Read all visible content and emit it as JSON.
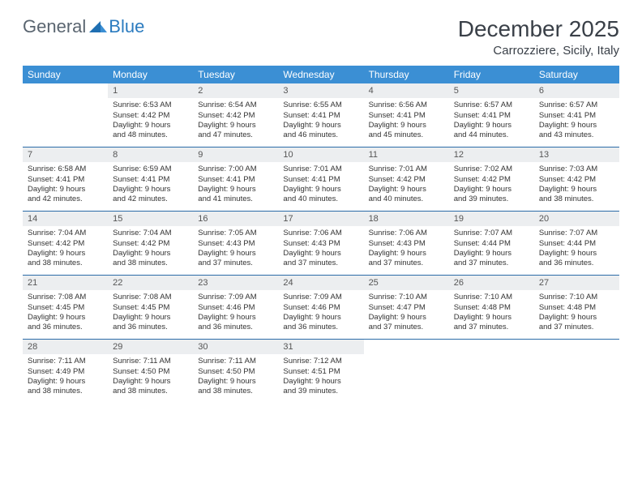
{
  "logo": {
    "general": "General",
    "blue": "Blue"
  },
  "title": "December 2025",
  "location": "Carrozziere, Sicily, Italy",
  "colors": {
    "header_bg": "#3b8fd4",
    "header_text": "#ffffff",
    "daynum_bg": "#eceef0",
    "row_border": "#2b6ca8",
    "logo_blue": "#2b7bbf",
    "title_color": "#3a4048"
  },
  "weekdays": [
    "Sunday",
    "Monday",
    "Tuesday",
    "Wednesday",
    "Thursday",
    "Friday",
    "Saturday"
  ],
  "weeks": [
    [
      null,
      {
        "n": "1",
        "sr": "Sunrise: 6:53 AM",
        "ss": "Sunset: 4:42 PM",
        "d1": "Daylight: 9 hours",
        "d2": "and 48 minutes."
      },
      {
        "n": "2",
        "sr": "Sunrise: 6:54 AM",
        "ss": "Sunset: 4:42 PM",
        "d1": "Daylight: 9 hours",
        "d2": "and 47 minutes."
      },
      {
        "n": "3",
        "sr": "Sunrise: 6:55 AM",
        "ss": "Sunset: 4:41 PM",
        "d1": "Daylight: 9 hours",
        "d2": "and 46 minutes."
      },
      {
        "n": "4",
        "sr": "Sunrise: 6:56 AM",
        "ss": "Sunset: 4:41 PM",
        "d1": "Daylight: 9 hours",
        "d2": "and 45 minutes."
      },
      {
        "n": "5",
        "sr": "Sunrise: 6:57 AM",
        "ss": "Sunset: 4:41 PM",
        "d1": "Daylight: 9 hours",
        "d2": "and 44 minutes."
      },
      {
        "n": "6",
        "sr": "Sunrise: 6:57 AM",
        "ss": "Sunset: 4:41 PM",
        "d1": "Daylight: 9 hours",
        "d2": "and 43 minutes."
      }
    ],
    [
      {
        "n": "7",
        "sr": "Sunrise: 6:58 AM",
        "ss": "Sunset: 4:41 PM",
        "d1": "Daylight: 9 hours",
        "d2": "and 42 minutes."
      },
      {
        "n": "8",
        "sr": "Sunrise: 6:59 AM",
        "ss": "Sunset: 4:41 PM",
        "d1": "Daylight: 9 hours",
        "d2": "and 42 minutes."
      },
      {
        "n": "9",
        "sr": "Sunrise: 7:00 AM",
        "ss": "Sunset: 4:41 PM",
        "d1": "Daylight: 9 hours",
        "d2": "and 41 minutes."
      },
      {
        "n": "10",
        "sr": "Sunrise: 7:01 AM",
        "ss": "Sunset: 4:41 PM",
        "d1": "Daylight: 9 hours",
        "d2": "and 40 minutes."
      },
      {
        "n": "11",
        "sr": "Sunrise: 7:01 AM",
        "ss": "Sunset: 4:42 PM",
        "d1": "Daylight: 9 hours",
        "d2": "and 40 minutes."
      },
      {
        "n": "12",
        "sr": "Sunrise: 7:02 AM",
        "ss": "Sunset: 4:42 PM",
        "d1": "Daylight: 9 hours",
        "d2": "and 39 minutes."
      },
      {
        "n": "13",
        "sr": "Sunrise: 7:03 AM",
        "ss": "Sunset: 4:42 PM",
        "d1": "Daylight: 9 hours",
        "d2": "and 38 minutes."
      }
    ],
    [
      {
        "n": "14",
        "sr": "Sunrise: 7:04 AM",
        "ss": "Sunset: 4:42 PM",
        "d1": "Daylight: 9 hours",
        "d2": "and 38 minutes."
      },
      {
        "n": "15",
        "sr": "Sunrise: 7:04 AM",
        "ss": "Sunset: 4:42 PM",
        "d1": "Daylight: 9 hours",
        "d2": "and 38 minutes."
      },
      {
        "n": "16",
        "sr": "Sunrise: 7:05 AM",
        "ss": "Sunset: 4:43 PM",
        "d1": "Daylight: 9 hours",
        "d2": "and 37 minutes."
      },
      {
        "n": "17",
        "sr": "Sunrise: 7:06 AM",
        "ss": "Sunset: 4:43 PM",
        "d1": "Daylight: 9 hours",
        "d2": "and 37 minutes."
      },
      {
        "n": "18",
        "sr": "Sunrise: 7:06 AM",
        "ss": "Sunset: 4:43 PM",
        "d1": "Daylight: 9 hours",
        "d2": "and 37 minutes."
      },
      {
        "n": "19",
        "sr": "Sunrise: 7:07 AM",
        "ss": "Sunset: 4:44 PM",
        "d1": "Daylight: 9 hours",
        "d2": "and 37 minutes."
      },
      {
        "n": "20",
        "sr": "Sunrise: 7:07 AM",
        "ss": "Sunset: 4:44 PM",
        "d1": "Daylight: 9 hours",
        "d2": "and 36 minutes."
      }
    ],
    [
      {
        "n": "21",
        "sr": "Sunrise: 7:08 AM",
        "ss": "Sunset: 4:45 PM",
        "d1": "Daylight: 9 hours",
        "d2": "and 36 minutes."
      },
      {
        "n": "22",
        "sr": "Sunrise: 7:08 AM",
        "ss": "Sunset: 4:45 PM",
        "d1": "Daylight: 9 hours",
        "d2": "and 36 minutes."
      },
      {
        "n": "23",
        "sr": "Sunrise: 7:09 AM",
        "ss": "Sunset: 4:46 PM",
        "d1": "Daylight: 9 hours",
        "d2": "and 36 minutes."
      },
      {
        "n": "24",
        "sr": "Sunrise: 7:09 AM",
        "ss": "Sunset: 4:46 PM",
        "d1": "Daylight: 9 hours",
        "d2": "and 36 minutes."
      },
      {
        "n": "25",
        "sr": "Sunrise: 7:10 AM",
        "ss": "Sunset: 4:47 PM",
        "d1": "Daylight: 9 hours",
        "d2": "and 37 minutes."
      },
      {
        "n": "26",
        "sr": "Sunrise: 7:10 AM",
        "ss": "Sunset: 4:48 PM",
        "d1": "Daylight: 9 hours",
        "d2": "and 37 minutes."
      },
      {
        "n": "27",
        "sr": "Sunrise: 7:10 AM",
        "ss": "Sunset: 4:48 PM",
        "d1": "Daylight: 9 hours",
        "d2": "and 37 minutes."
      }
    ],
    [
      {
        "n": "28",
        "sr": "Sunrise: 7:11 AM",
        "ss": "Sunset: 4:49 PM",
        "d1": "Daylight: 9 hours",
        "d2": "and 38 minutes."
      },
      {
        "n": "29",
        "sr": "Sunrise: 7:11 AM",
        "ss": "Sunset: 4:50 PM",
        "d1": "Daylight: 9 hours",
        "d2": "and 38 minutes."
      },
      {
        "n": "30",
        "sr": "Sunrise: 7:11 AM",
        "ss": "Sunset: 4:50 PM",
        "d1": "Daylight: 9 hours",
        "d2": "and 38 minutes."
      },
      {
        "n": "31",
        "sr": "Sunrise: 7:12 AM",
        "ss": "Sunset: 4:51 PM",
        "d1": "Daylight: 9 hours",
        "d2": "and 39 minutes."
      },
      null,
      null,
      null
    ]
  ]
}
